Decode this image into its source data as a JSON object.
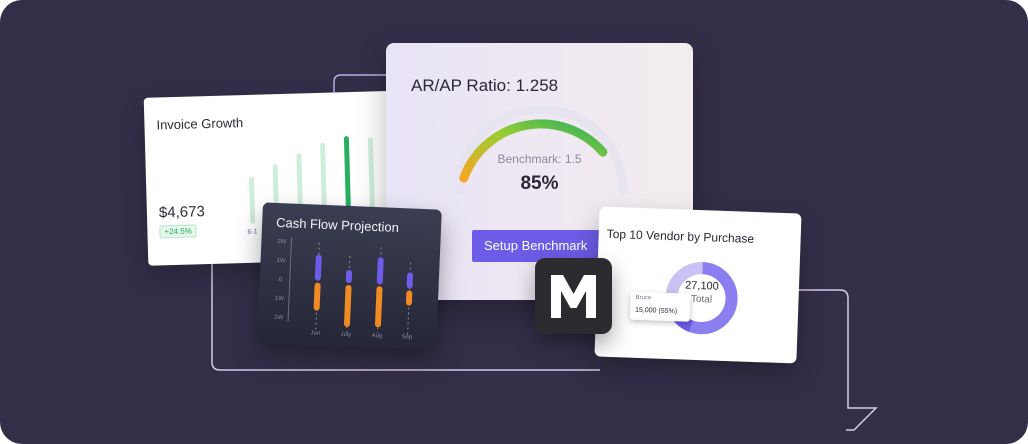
{
  "invoice_growth": {
    "title": "Invoice Growth",
    "amount": "$4,673",
    "change_badge": "+24.5%",
    "x_tick": "6-1"
  },
  "ar_ap": {
    "title": "AR/AP Ratio: 1.258",
    "benchmark_text": "Benchmark: 1.5",
    "gauge_value": "85%",
    "gauge_fraction": 0.85,
    "setup_button_label": "Setup Benchmark"
  },
  "cash_flow": {
    "title": "Cash Flow Projection",
    "y_ticks": [
      "2W",
      "1W",
      "0",
      "1W",
      "2W"
    ],
    "months": [
      "Jun",
      "July",
      "Aug",
      "Sep"
    ]
  },
  "vendor": {
    "title": "Top 10 Vendor by Purchase",
    "total_value": "27,100",
    "total_label": "Total",
    "tooltip_name": "Bruce",
    "tooltip_value": "15,000  (55%)"
  },
  "colors": {
    "accent": "#6c5ce7",
    "green": "#27ae60",
    "orange": "#f08a24",
    "purple_bar": "#6c5ce7",
    "background": "#342f49"
  },
  "icons": {
    "logo": "m-logo-icon"
  }
}
